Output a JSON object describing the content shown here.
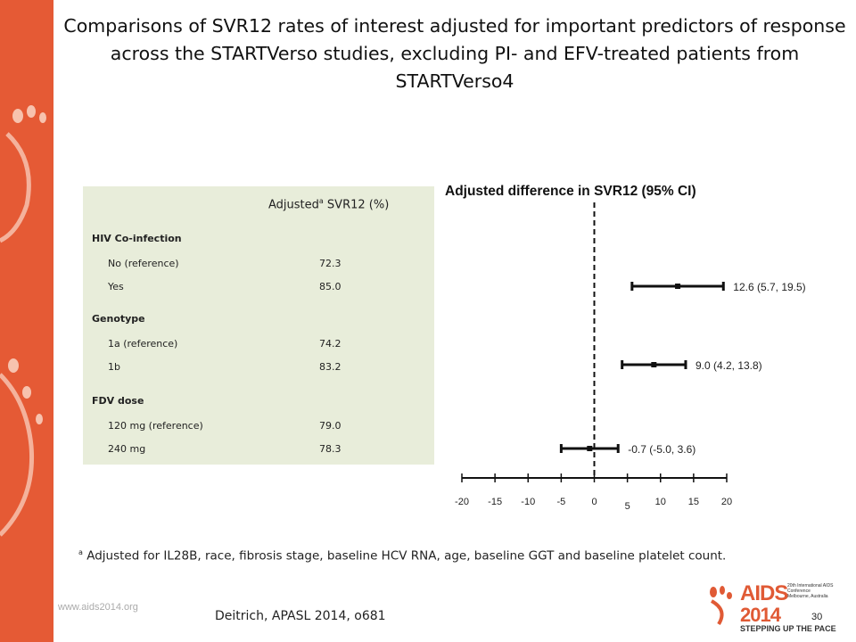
{
  "slide": {
    "title": "Comparisons of SVR12 rates of interest adjusted for important predictors of response across the STARTVerso studies, excluding PI- and EFV-treated patients from STARTVerso4",
    "footnote_sup": "a",
    "footnote": " Adjusted for IL28B, race, fibrosis stage, baseline HCV RNA, age, baseline GGT and baseline platelet count.",
    "website": "www.aids2014.org",
    "citation": "Deitrich, APASL 2014, o681",
    "page_number": "30",
    "accent_color": "#e55a35"
  },
  "table": {
    "header_pre": "Adjusted",
    "header_sup": "a",
    "header_post": " SVR12 (%)",
    "sections": [
      {
        "label": "HIV Co-infection",
        "rows": [
          {
            "label": "No (reference)",
            "value": "72.3"
          },
          {
            "label": "Yes",
            "value": "85.0"
          }
        ]
      },
      {
        "label": "Genotype",
        "rows": [
          {
            "label": "1a (reference)",
            "value": "74.2"
          },
          {
            "label": "1b",
            "value": "83.2"
          }
        ]
      },
      {
        "label": "FDV dose",
        "rows": [
          {
            "label": "120 mg (reference)",
            "value": "79.0"
          },
          {
            "label": "240  mg",
            "value": "78.3"
          }
        ]
      }
    ],
    "background": "#e8edda"
  },
  "chart_data": {
    "type": "forest",
    "title": "Adjusted difference in SVR12 (95% CI)",
    "xlim": [
      -20,
      20
    ],
    "xticks": [
      -20,
      -15,
      -10,
      -5,
      0,
      5,
      10,
      15,
      20
    ],
    "reference_line": 0,
    "series": [
      {
        "estimate": 12.6,
        "lower": 5.7,
        "upper": 19.5,
        "label": "12.6 (5.7, 19.5)"
      },
      {
        "estimate": 9.0,
        "lower": 4.2,
        "upper": 13.8,
        "label": "9.0 (4.2, 13.8)"
      },
      {
        "estimate": -0.7,
        "lower": -5.0,
        "upper": 3.6,
        "label": "-0.7 (-5.0, 3.6)"
      }
    ]
  },
  "logo": {
    "name": "AIDS",
    "year": "2014",
    "conference": "20th International AIDS Conference",
    "location": "Melbourne, Australia",
    "tagline": "STEPPING UP THE PACE"
  }
}
